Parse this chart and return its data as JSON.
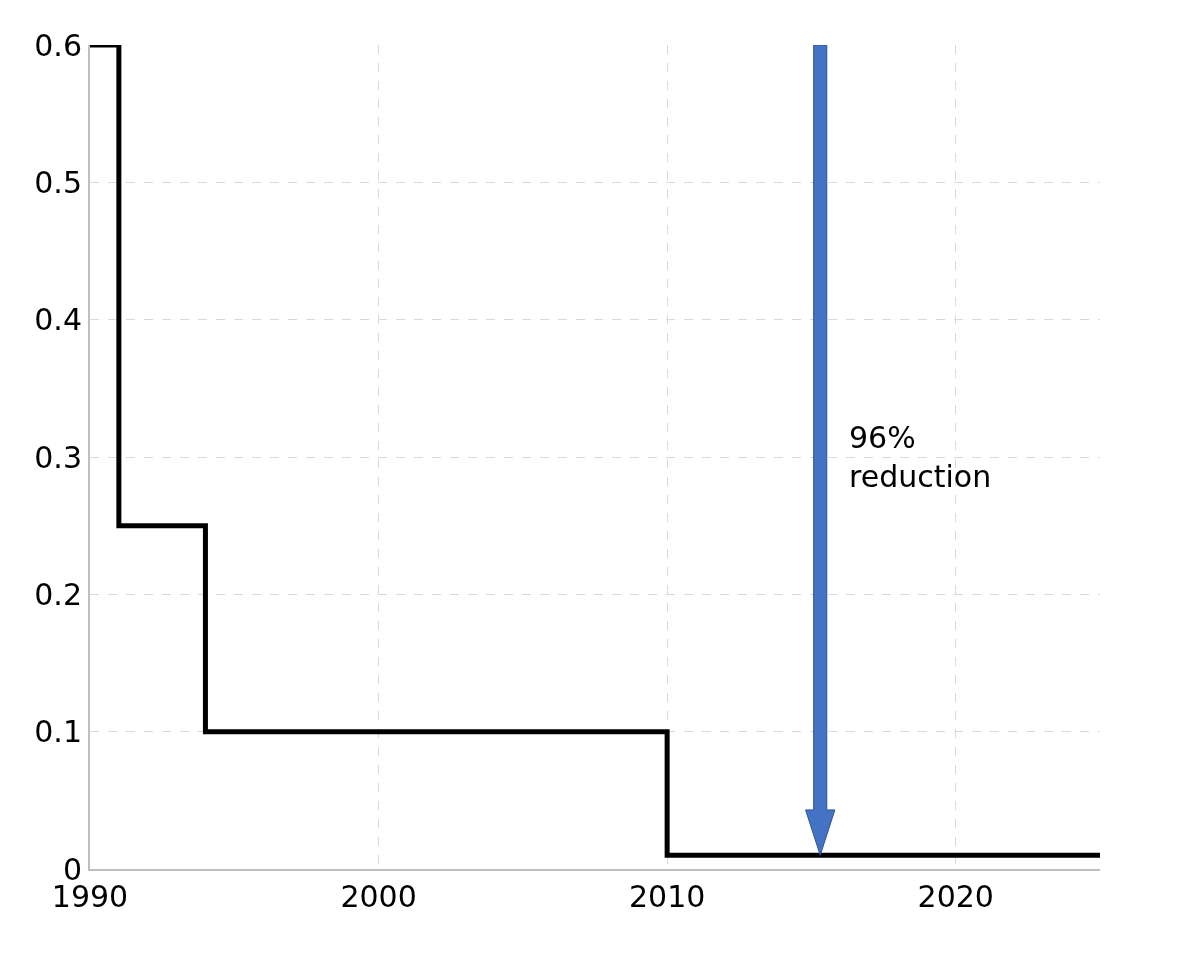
{
  "chart_data": {
    "type": "step",
    "x": [
      1990,
      1991,
      1994,
      2010,
      2025
    ],
    "series": [
      {
        "color": "#000000",
        "values": [
          0.6,
          0.25,
          0.1,
          0.01,
          0.01
        ]
      }
    ],
    "xlim": [
      1990,
      2025
    ],
    "xticks": [
      1990,
      2000,
      2010,
      2020
    ],
    "ylim": [
      0,
      0.6
    ],
    "yticks": [
      0,
      0.1,
      0.2,
      0.3,
      0.4,
      0.5,
      0.6
    ],
    "grid": true,
    "line_style": "solid",
    "marker": "none",
    "annotations": [
      "96%\nreduction"
    ]
  }
}
